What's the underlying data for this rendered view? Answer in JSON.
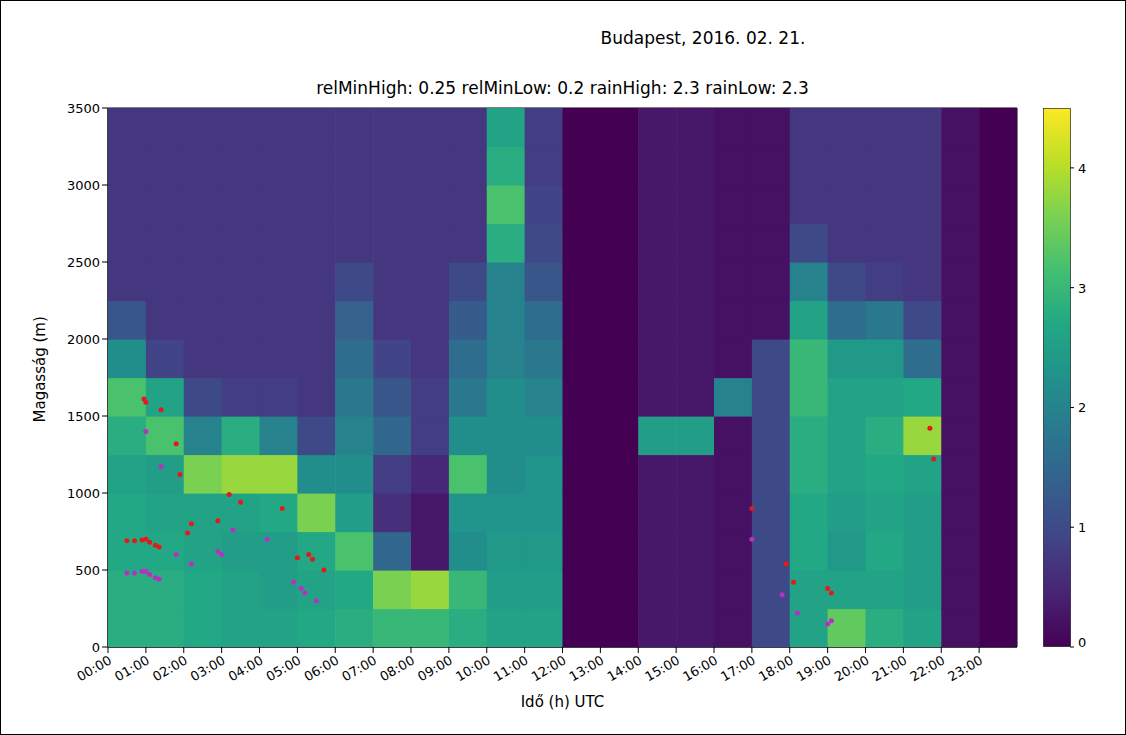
{
  "chart_data": {
    "type": "heatmap",
    "title": "Budapest, 2016. 02. 21.",
    "subtitle": "relMinHigh: 0.25 relMinLow: 0.2 rainHigh: 2.3 rainLow: 2.3",
    "x_label": "Idő (h) UTC",
    "y_label": "Magasság (m)",
    "xlim": [
      0,
      24
    ],
    "xticks": [
      {
        "value": 0,
        "label": "00:00"
      },
      {
        "value": 1,
        "label": "01:00"
      },
      {
        "value": 2,
        "label": "02:00"
      },
      {
        "value": 3,
        "label": "03:00"
      },
      {
        "value": 4,
        "label": "04:00"
      },
      {
        "value": 5,
        "label": "05:00"
      },
      {
        "value": 6,
        "label": "06:00"
      },
      {
        "value": 7,
        "label": "07:00"
      },
      {
        "value": 8,
        "label": "08:00"
      },
      {
        "value": 9,
        "label": "09:00"
      },
      {
        "value": 10,
        "label": "10:00"
      },
      {
        "value": 11,
        "label": "11:00"
      },
      {
        "value": 12,
        "label": "12:00"
      },
      {
        "value": 13,
        "label": "13:00"
      },
      {
        "value": 14,
        "label": "14:00"
      },
      {
        "value": 15,
        "label": "15:00"
      },
      {
        "value": 16,
        "label": "16:00"
      },
      {
        "value": 17,
        "label": "17:00"
      },
      {
        "value": 18,
        "label": "18:00"
      },
      {
        "value": 19,
        "label": "19:00"
      },
      {
        "value": 20,
        "label": "20:00"
      },
      {
        "value": 21,
        "label": "21:00"
      },
      {
        "value": 22,
        "label": "22:00"
      },
      {
        "value": 23,
        "label": "23:00"
      }
    ],
    "ylim": [
      0,
      3500
    ],
    "yticks": [
      0,
      500,
      1000,
      1500,
      2000,
      2500,
      3000,
      3500
    ],
    "x_bins": [
      0,
      1,
      2,
      3,
      4,
      5,
      6,
      7,
      8,
      9,
      10,
      11,
      12,
      13,
      14,
      15,
      16,
      17,
      18,
      19,
      20,
      21,
      22,
      23,
      24
    ],
    "y_bins": [
      0,
      250,
      500,
      750,
      1000,
      1250,
      1500,
      1750,
      2000,
      2250,
      2500,
      2750,
      3000,
      3250,
      3500
    ],
    "cells": [
      [
        2.8,
        2.8,
        2.7,
        2.7,
        2.6,
        2.8,
        3.2,
        2.2,
        1.2,
        0.7,
        0.7,
        0.7,
        0.7,
        0.7
      ],
      [
        2.8,
        2.8,
        2.7,
        2.6,
        2.5,
        3.2,
        2.6,
        0.9,
        0.7,
        0.7,
        0.7,
        0.7,
        0.7,
        0.7
      ],
      [
        2.7,
        2.7,
        2.6,
        2.6,
        3.6,
        2.0,
        1.0,
        0.7,
        0.7,
        0.7,
        0.7,
        0.7,
        0.7,
        0.7
      ],
      [
        2.6,
        2.6,
        2.5,
        2.6,
        3.8,
        2.8,
        0.8,
        0.7,
        0.7,
        0.7,
        0.7,
        0.7,
        0.7,
        0.7
      ],
      [
        2.6,
        2.5,
        2.5,
        2.7,
        3.8,
        2.0,
        0.8,
        0.7,
        0.7,
        0.7,
        0.7,
        0.7,
        0.7,
        0.7
      ],
      [
        2.7,
        2.6,
        2.7,
        3.6,
        2.2,
        1.0,
        0.7,
        0.7,
        0.7,
        0.7,
        0.7,
        0.7,
        0.7,
        0.7
      ],
      [
        2.8,
        2.7,
        3.2,
        2.5,
        2.2,
        2.0,
        1.8,
        1.6,
        1.4,
        1.0,
        0.7,
        0.7,
        0.7,
        0.7
      ],
      [
        3.0,
        3.6,
        1.5,
        0.6,
        0.8,
        1.5,
        1.2,
        0.9,
        0.7,
        0.7,
        0.7,
        0.7,
        0.7,
        0.7
      ],
      [
        3.0,
        3.8,
        0.3,
        0.3,
        0.5,
        0.8,
        0.8,
        0.7,
        0.7,
        0.7,
        0.7,
        0.7,
        0.7,
        0.7
      ],
      [
        2.8,
        3.0,
        2.2,
        2.3,
        3.2,
        2.2,
        1.8,
        1.6,
        1.3,
        1.0,
        0.7,
        0.7,
        0.7,
        0.7
      ],
      [
        2.6,
        2.5,
        2.4,
        2.3,
        2.2,
        2.2,
        2.2,
        2.0,
        2.0,
        2.0,
        2.8,
        3.2,
        2.8,
        2.6
      ],
      [
        2.6,
        2.5,
        2.4,
        2.3,
        2.3,
        2.2,
        2.0,
        1.8,
        1.6,
        1.2,
        1.0,
        0.9,
        0.8,
        0.8
      ],
      [
        0,
        0,
        0,
        0,
        0,
        0,
        0,
        0,
        0,
        0,
        0,
        0,
        0,
        0
      ],
      [
        0,
        0,
        0,
        0,
        0,
        0,
        0,
        0,
        0,
        0,
        0,
        0,
        0,
        0
      ],
      [
        0.3,
        0.3,
        0.3,
        0.3,
        0.3,
        2.5,
        0.3,
        0.3,
        0.3,
        0.3,
        0.3,
        0.3,
        0.3,
        0.3
      ],
      [
        0.3,
        0.3,
        0.3,
        0.3,
        0.3,
        2.5,
        0.3,
        0.3,
        0.3,
        0.3,
        0.3,
        0.3,
        0.3,
        0.3
      ],
      [
        0.2,
        0.2,
        0.2,
        0.2,
        0.2,
        0.2,
        2.0,
        0.2,
        0.2,
        0.2,
        0.2,
        0.2,
        0.2,
        0.2
      ],
      [
        1.0,
        1.0,
        1.0,
        1.0,
        1.0,
        1.0,
        1.0,
        1.0,
        0.2,
        0.2,
        0.2,
        0.2,
        0.2,
        0.2
      ],
      [
        2.6,
        2.6,
        2.7,
        2.7,
        2.8,
        2.8,
        3.0,
        3.0,
        2.6,
        2.0,
        1.0,
        0.7,
        0.7,
        0.7
      ],
      [
        3.4,
        2.6,
        2.4,
        2.5,
        2.6,
        2.6,
        2.6,
        2.4,
        1.6,
        1.0,
        0.7,
        0.7,
        0.7,
        0.7
      ],
      [
        2.8,
        2.6,
        2.7,
        2.6,
        2.7,
        2.8,
        2.6,
        2.4,
        1.8,
        0.8,
        0.7,
        0.7,
        0.7,
        0.7
      ],
      [
        2.6,
        2.5,
        2.5,
        2.5,
        2.6,
        3.8,
        2.7,
        1.6,
        1.0,
        0.7,
        0.7,
        0.7,
        0.7,
        0.7
      ],
      [
        0.2,
        0.2,
        0.2,
        0.2,
        0.2,
        0.2,
        0.2,
        0.2,
        0.2,
        0.2,
        0.2,
        0.2,
        0.2,
        0.2
      ],
      [
        0,
        0,
        0,
        0,
        0,
        0,
        0,
        0,
        0,
        0,
        0,
        0,
        0,
        0
      ]
    ],
    "colorbar": {
      "range": [
        0,
        4.5
      ],
      "ticks": [
        0,
        1,
        2,
        3,
        4
      ]
    },
    "series": [
      {
        "type": "scatter",
        "color": "#e4191c",
        "x": [
          0.5,
          0.7,
          0.9,
          1.0,
          1.1,
          1.25,
          1.35,
          0.95,
          1.0,
          1.4,
          1.8,
          1.9,
          2.2,
          2.1,
          2.9,
          3.2,
          3.5,
          4.6,
          5.0,
          5.3,
          5.4,
          5.7,
          17.0,
          17.9,
          18.1,
          19.0,
          19.1,
          21.7,
          21.8
        ],
        "y": [
          690,
          690,
          695,
          700,
          680,
          660,
          650,
          1610,
          1590,
          1540,
          1320,
          1120,
          800,
          740,
          820,
          990,
          940,
          900,
          580,
          600,
          570,
          500,
          900,
          540,
          420,
          380,
          350,
          1420,
          1220
        ]
      },
      {
        "type": "scatter",
        "color": "#b92fc2",
        "x": [
          0.5,
          0.7,
          0.9,
          1.0,
          1.1,
          1.25,
          1.35,
          1.0,
          1.4,
          1.8,
          2.2,
          2.9,
          3.0,
          3.3,
          4.2,
          4.9,
          5.1,
          5.2,
          5.5,
          17.0,
          17.8,
          18.2,
          19.0,
          19.1
        ],
        "y": [
          480,
          480,
          490,
          490,
          470,
          450,
          440,
          1400,
          1170,
          600,
          540,
          620,
          600,
          760,
          700,
          420,
          380,
          350,
          300,
          700,
          340,
          220,
          150,
          170
        ]
      }
    ]
  }
}
